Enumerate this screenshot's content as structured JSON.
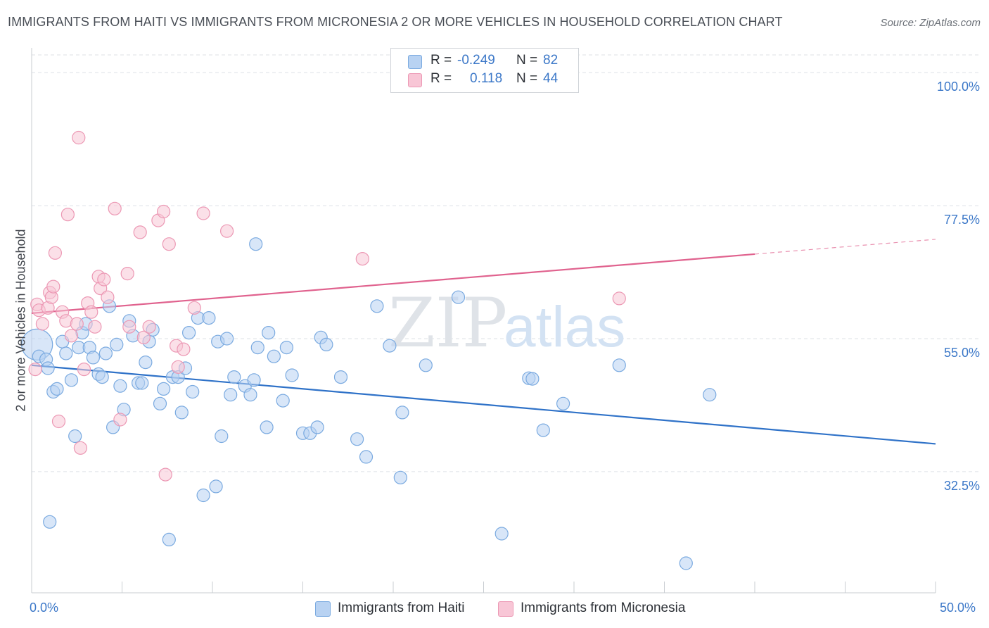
{
  "title": "IMMIGRANTS FROM HAITI VS IMMIGRANTS FROM MICRONESIA 2 OR MORE VEHICLES IN HOUSEHOLD CORRELATION CHART",
  "source": "Source: ZipAtlas.com",
  "watermark": {
    "zip": "ZIP",
    "atlas": "atlas"
  },
  "colors": {
    "haiti_fill": "#b8d2f2",
    "haiti_stroke": "#7aaae0",
    "haiti_line": "#2f72c8",
    "micronesia_fill": "#f8c6d6",
    "micronesia_stroke": "#ec98b4",
    "micronesia_line": "#e0628e",
    "tick_text": "#3c78c8",
    "grid": "#dde1e6"
  },
  "legend": {
    "rows": [
      {
        "r_label": "R =",
        "r_value": "-0.249",
        "n_label": "N =",
        "n_value": "82"
      },
      {
        "r_label": "R =",
        "r_value": "0.118",
        "n_label": "N =",
        "n_value": "44"
      }
    ]
  },
  "chart_data": {
    "type": "scatter",
    "title": "IMMIGRANTS FROM HAITI VS IMMIGRANTS FROM MICRONESIA 2 OR MORE VEHICLES IN HOUSEHOLD CORRELATION CHART",
    "xlabel": "",
    "ylabel": "2 or more Vehicles in Household",
    "xlim": [
      0,
      50
    ],
    "ylim": [
      12,
      103
    ],
    "x_tick_labels": [
      "0.0%",
      "50.0%"
    ],
    "y_ticks": [
      32.5,
      55.0,
      77.5,
      100.0
    ],
    "y_tick_labels": [
      "32.5%",
      "55.0%",
      "77.5%",
      "100.0%"
    ],
    "grid": true,
    "legend_position": "bottom",
    "series": [
      {
        "name": "Immigrants from Haiti",
        "trend": {
          "x": [
            0,
            50
          ],
          "y": [
            50.5,
            37.2
          ]
        },
        "points": [
          [
            0.3,
            54.0
          ],
          [
            0.4,
            52.0
          ],
          [
            0.8,
            51.5
          ],
          [
            0.9,
            50.0
          ],
          [
            1.0,
            24.0
          ],
          [
            1.2,
            46.0
          ],
          [
            1.4,
            46.5
          ],
          [
            1.7,
            54.5
          ],
          [
            1.9,
            52.5
          ],
          [
            2.2,
            48.0
          ],
          [
            2.4,
            38.5
          ],
          [
            2.6,
            53.5
          ],
          [
            2.8,
            56.0
          ],
          [
            3.0,
            57.5
          ],
          [
            3.2,
            53.5
          ],
          [
            3.4,
            51.8
          ],
          [
            3.7,
            49.0
          ],
          [
            3.9,
            48.5
          ],
          [
            4.1,
            52.5
          ],
          [
            4.3,
            60.5
          ],
          [
            4.5,
            40.0
          ],
          [
            4.7,
            54.0
          ],
          [
            4.9,
            47.0
          ],
          [
            5.1,
            43.0
          ],
          [
            5.4,
            58.0
          ],
          [
            5.6,
            55.5
          ],
          [
            5.9,
            47.5
          ],
          [
            6.1,
            47.5
          ],
          [
            6.3,
            51.0
          ],
          [
            6.5,
            54.5
          ],
          [
            6.7,
            56.5
          ],
          [
            7.1,
            44.0
          ],
          [
            7.3,
            46.5
          ],
          [
            7.6,
            21.0
          ],
          [
            7.8,
            48.5
          ],
          [
            8.1,
            48.5
          ],
          [
            8.3,
            42.5
          ],
          [
            8.5,
            50.0
          ],
          [
            8.7,
            56.0
          ],
          [
            8.9,
            46.0
          ],
          [
            9.2,
            58.5
          ],
          [
            9.5,
            28.5
          ],
          [
            9.8,
            58.5
          ],
          [
            10.2,
            30.0
          ],
          [
            10.3,
            54.5
          ],
          [
            10.5,
            38.5
          ],
          [
            10.8,
            55.0
          ],
          [
            11.0,
            45.5
          ],
          [
            11.2,
            48.5
          ],
          [
            11.8,
            47.0
          ],
          [
            12.1,
            45.5
          ],
          [
            12.3,
            48.0
          ],
          [
            12.5,
            53.5
          ],
          [
            12.4,
            71.0
          ],
          [
            13.0,
            40.0
          ],
          [
            13.1,
            56.0
          ],
          [
            13.4,
            52.0
          ],
          [
            13.9,
            44.5
          ],
          [
            14.1,
            53.5
          ],
          [
            14.4,
            48.8
          ],
          [
            15.0,
            39.0
          ],
          [
            15.4,
            39.0
          ],
          [
            15.8,
            40.0
          ],
          [
            16.0,
            55.2
          ],
          [
            16.3,
            54.0
          ],
          [
            17.1,
            48.5
          ],
          [
            18.0,
            38.0
          ],
          [
            18.5,
            35.0
          ],
          [
            19.1,
            60.5
          ],
          [
            19.8,
            53.8
          ],
          [
            20.4,
            31.5
          ],
          [
            20.5,
            42.5
          ],
          [
            21.8,
            50.5
          ],
          [
            23.6,
            62.0
          ],
          [
            26.0,
            22.0
          ],
          [
            27.5,
            48.3
          ],
          [
            27.7,
            48.2
          ],
          [
            28.3,
            39.5
          ],
          [
            29.4,
            44.0
          ],
          [
            32.5,
            50.5
          ],
          [
            37.5,
            45.5
          ],
          [
            36.2,
            17.0
          ]
        ]
      },
      {
        "name": "Immigrants from Micronesia",
        "trend": {
          "x": [
            0,
            40
          ],
          "y": [
            59.3,
            69.3
          ]
        },
        "trend_extension": {
          "x": [
            40,
            50
          ],
          "y": [
            69.3,
            71.8
          ]
        },
        "points": [
          [
            0.2,
            49.8
          ],
          [
            0.3,
            60.8
          ],
          [
            0.4,
            59.8
          ],
          [
            0.6,
            57.5
          ],
          [
            0.9,
            60.2
          ],
          [
            1.0,
            62.8
          ],
          [
            1.1,
            62.0
          ],
          [
            1.2,
            63.8
          ],
          [
            1.3,
            69.5
          ],
          [
            1.5,
            41.0
          ],
          [
            1.7,
            59.5
          ],
          [
            1.9,
            58.0
          ],
          [
            2.0,
            76.0
          ],
          [
            2.2,
            55.5
          ],
          [
            2.5,
            57.5
          ],
          [
            2.6,
            89.0
          ],
          [
            2.7,
            36.5
          ],
          [
            2.9,
            49.8
          ],
          [
            3.1,
            61.0
          ],
          [
            3.3,
            59.5
          ],
          [
            3.5,
            57.0
          ],
          [
            3.7,
            65.5
          ],
          [
            3.8,
            63.5
          ],
          [
            4.0,
            65.0
          ],
          [
            4.2,
            62.0
          ],
          [
            4.6,
            77.0
          ],
          [
            4.9,
            41.3
          ],
          [
            5.3,
            66.0
          ],
          [
            5.4,
            57.0
          ],
          [
            6.0,
            73.0
          ],
          [
            6.2,
            55.2
          ],
          [
            6.5,
            57.0
          ],
          [
            7.0,
            75.0
          ],
          [
            7.3,
            76.5
          ],
          [
            7.4,
            32.0
          ],
          [
            7.6,
            71.0
          ],
          [
            8.0,
            53.8
          ],
          [
            8.1,
            50.2
          ],
          [
            8.4,
            53.2
          ],
          [
            9.0,
            60.2
          ],
          [
            9.5,
            76.2
          ],
          [
            10.8,
            73.2
          ],
          [
            18.3,
            68.5
          ],
          [
            32.5,
            61.8
          ]
        ]
      }
    ]
  },
  "bottom_legend": [
    "Immigrants from Haiti",
    "Immigrants from Micronesia"
  ]
}
